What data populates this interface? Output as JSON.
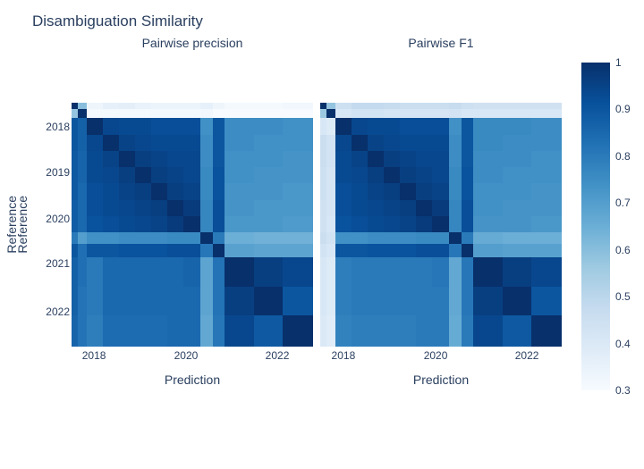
{
  "title": "Disambiguation Similarity",
  "text_color": "#2a3f5f",
  "colorscale": [
    [
      0.0,
      "#f7fbff"
    ],
    [
      0.125,
      "#deebf7"
    ],
    [
      0.25,
      "#c6dbef"
    ],
    [
      0.375,
      "#9ecae1"
    ],
    [
      0.5,
      "#6baed6"
    ],
    [
      0.625,
      "#4292c6"
    ],
    [
      0.75,
      "#2171b5"
    ],
    [
      0.875,
      "#08519c"
    ],
    [
      1.0,
      "#08306b"
    ]
  ],
  "colorbar": {
    "zmin": 0.3,
    "zmax": 1.0,
    "tick_labels": [
      "1",
      "0.9",
      "0.8",
      "0.7",
      "0.6",
      "0.5",
      "0.4",
      "0.3"
    ]
  },
  "chart_data": [
    {
      "type": "heatmap",
      "title": "Pairwise precision",
      "xlabel": "Prediction",
      "ylabel": "Reference",
      "zmin": 0.3,
      "zmax": 1.0,
      "x_ticks": [
        {
          "label": "2018",
          "pos": 0.093
        },
        {
          "label": "2020",
          "pos": 0.474
        },
        {
          "label": "2022",
          "pos": 0.852
        }
      ],
      "y_ticks": [
        {
          "label": "2018",
          "pos": 0.099
        },
        {
          "label": "2019",
          "pos": 0.286
        },
        {
          "label": "2020",
          "pos": 0.476
        },
        {
          "label": "2021",
          "pos": 0.659
        },
        {
          "label": "2022",
          "pos": 0.857
        }
      ],
      "col_sizes": [
        7,
        10,
        18,
        18,
        18,
        18,
        18,
        18,
        18,
        14,
        13,
        33,
        32,
        34
      ],
      "row_sizes": [
        7,
        10,
        18,
        18,
        18,
        18,
        18,
        18,
        18,
        13,
        14,
        33,
        32,
        34
      ],
      "values": [
        [
          1.0,
          0.6,
          0.33,
          0.36,
          0.37,
          0.35,
          0.34,
          0.34,
          0.34,
          0.36,
          0.33,
          0.31,
          0.31,
          0.32
        ],
        [
          0.58,
          1.0,
          0.31,
          0.31,
          0.31,
          0.31,
          0.31,
          0.31,
          0.31,
          0.32,
          0.3,
          0.3,
          0.3,
          0.3
        ],
        [
          0.9,
          0.87,
          1.0,
          0.94,
          0.93,
          0.93,
          0.92,
          0.92,
          0.92,
          0.74,
          0.9,
          0.75,
          0.75,
          0.74
        ],
        [
          0.9,
          0.87,
          0.94,
          1.0,
          0.95,
          0.94,
          0.93,
          0.93,
          0.93,
          0.75,
          0.9,
          0.75,
          0.74,
          0.74
        ],
        [
          0.89,
          0.86,
          0.93,
          0.95,
          1.0,
          0.96,
          0.95,
          0.94,
          0.94,
          0.75,
          0.9,
          0.74,
          0.74,
          0.73
        ],
        [
          0.89,
          0.86,
          0.93,
          0.94,
          0.96,
          1.0,
          0.96,
          0.95,
          0.94,
          0.76,
          0.91,
          0.74,
          0.73,
          0.73
        ],
        [
          0.89,
          0.85,
          0.92,
          0.93,
          0.95,
          0.96,
          1.0,
          0.96,
          0.95,
          0.76,
          0.91,
          0.73,
          0.73,
          0.72
        ],
        [
          0.88,
          0.85,
          0.92,
          0.93,
          0.94,
          0.95,
          0.96,
          1.0,
          0.97,
          0.77,
          0.92,
          0.73,
          0.72,
          0.72
        ],
        [
          0.88,
          0.85,
          0.91,
          0.92,
          0.93,
          0.94,
          0.95,
          0.97,
          1.0,
          0.77,
          0.92,
          0.72,
          0.72,
          0.71
        ],
        [
          0.8,
          0.7,
          0.74,
          0.74,
          0.75,
          0.75,
          0.75,
          0.76,
          0.76,
          1.0,
          0.8,
          0.65,
          0.64,
          0.64
        ],
        [
          0.9,
          0.83,
          0.9,
          0.9,
          0.91,
          0.91,
          0.91,
          0.92,
          0.92,
          0.81,
          1.0,
          0.69,
          0.68,
          0.68
        ],
        [
          0.87,
          0.83,
          0.8,
          0.85,
          0.85,
          0.85,
          0.85,
          0.85,
          0.86,
          0.68,
          0.82,
          1.0,
          0.96,
          0.94
        ],
        [
          0.87,
          0.82,
          0.8,
          0.85,
          0.85,
          0.85,
          0.85,
          0.85,
          0.85,
          0.68,
          0.82,
          0.96,
          1.0,
          0.9
        ],
        [
          0.86,
          0.82,
          0.79,
          0.84,
          0.84,
          0.84,
          0.84,
          0.85,
          0.85,
          0.67,
          0.81,
          0.94,
          0.89,
          1.0
        ]
      ]
    },
    {
      "type": "heatmap",
      "title": "Pairwise F1",
      "xlabel": "Prediction",
      "ylabel": "Reference",
      "zmin": 0.3,
      "zmax": 1.0,
      "x_ticks": [
        {
          "label": "2018",
          "pos": 0.096
        },
        {
          "label": "2020",
          "pos": 0.478
        },
        {
          "label": "2022",
          "pos": 0.856
        }
      ],
      "col_sizes": [
        7,
        10,
        18,
        18,
        18,
        18,
        18,
        18,
        18,
        14,
        13,
        33,
        32,
        34
      ],
      "row_sizes": [
        7,
        10,
        18,
        18,
        18,
        18,
        18,
        18,
        18,
        13,
        14,
        33,
        32,
        34
      ],
      "values": [
        [
          1.0,
          0.58,
          0.45,
          0.48,
          0.48,
          0.47,
          0.46,
          0.46,
          0.46,
          0.47,
          0.45,
          0.44,
          0.44,
          0.44
        ],
        [
          0.57,
          1.0,
          0.41,
          0.43,
          0.43,
          0.42,
          0.42,
          0.42,
          0.42,
          0.43,
          0.41,
          0.41,
          0.41,
          0.41
        ],
        [
          0.41,
          0.39,
          1.0,
          0.94,
          0.93,
          0.93,
          0.92,
          0.92,
          0.92,
          0.74,
          0.9,
          0.76,
          0.76,
          0.75
        ],
        [
          0.46,
          0.43,
          0.94,
          1.0,
          0.95,
          0.94,
          0.93,
          0.93,
          0.93,
          0.75,
          0.9,
          0.76,
          0.75,
          0.75
        ],
        [
          0.46,
          0.43,
          0.93,
          0.95,
          1.0,
          0.96,
          0.95,
          0.94,
          0.94,
          0.75,
          0.9,
          0.75,
          0.75,
          0.74
        ],
        [
          0.45,
          0.42,
          0.93,
          0.94,
          0.96,
          1.0,
          0.96,
          0.95,
          0.94,
          0.76,
          0.91,
          0.75,
          0.74,
          0.74
        ],
        [
          0.45,
          0.42,
          0.92,
          0.93,
          0.95,
          0.96,
          1.0,
          0.96,
          0.95,
          0.76,
          0.91,
          0.74,
          0.74,
          0.73
        ],
        [
          0.44,
          0.42,
          0.92,
          0.93,
          0.94,
          0.95,
          0.96,
          1.0,
          0.97,
          0.77,
          0.92,
          0.74,
          0.73,
          0.73
        ],
        [
          0.44,
          0.41,
          0.91,
          0.92,
          0.93,
          0.94,
          0.95,
          0.97,
          1.0,
          0.77,
          0.92,
          0.73,
          0.73,
          0.72
        ],
        [
          0.46,
          0.43,
          0.74,
          0.74,
          0.75,
          0.75,
          0.75,
          0.76,
          0.76,
          1.0,
          0.8,
          0.66,
          0.65,
          0.65
        ],
        [
          0.43,
          0.41,
          0.9,
          0.9,
          0.91,
          0.91,
          0.91,
          0.92,
          0.92,
          0.81,
          1.0,
          0.7,
          0.69,
          0.69
        ],
        [
          0.41,
          0.39,
          0.79,
          0.8,
          0.8,
          0.8,
          0.8,
          0.8,
          0.81,
          0.67,
          0.81,
          1.0,
          0.96,
          0.94
        ],
        [
          0.41,
          0.39,
          0.79,
          0.8,
          0.8,
          0.8,
          0.8,
          0.8,
          0.8,
          0.67,
          0.81,
          0.96,
          1.0,
          0.9
        ],
        [
          0.4,
          0.38,
          0.78,
          0.79,
          0.79,
          0.79,
          0.79,
          0.8,
          0.8,
          0.66,
          0.8,
          0.94,
          0.89,
          1.0
        ]
      ]
    }
  ]
}
